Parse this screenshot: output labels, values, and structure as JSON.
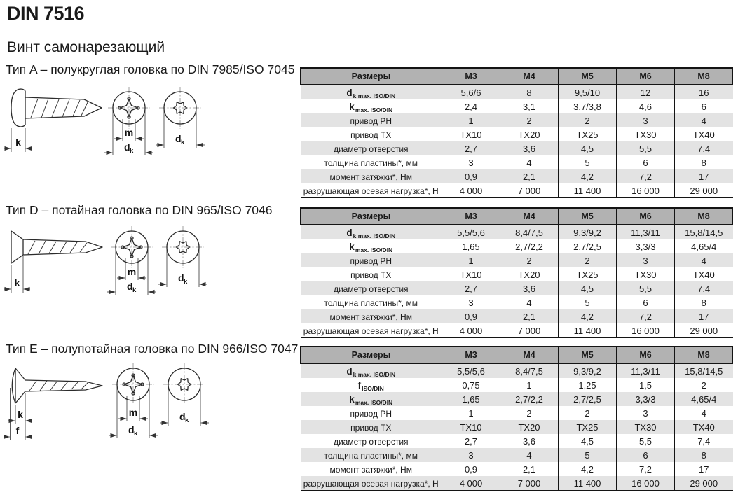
{
  "page": {
    "title": "DIN 7516",
    "subtitle": "Винт самонарезающий"
  },
  "colors": {
    "header_bg": "#b2b2b2",
    "row_alt_bg": "#e3e3e3",
    "border": "#141414",
    "text": "#1a1a1a"
  },
  "drawing_labels": {
    "k": "k",
    "m": "m",
    "f": "f",
    "d": "d",
    "d_sub": "k"
  },
  "sections": [
    {
      "id": "A",
      "title": "Тип A – полукруглая головка по DIN 7985/ISO 7045",
      "table": {
        "header": [
          "Размеры",
          "M3",
          "M4",
          "M5",
          "M6",
          "M8"
        ],
        "rows": [
          {
            "main": "d",
            "sub": "k max. ISO/DIN",
            "values": [
              "5,6/6",
              "8",
              "9,5/10",
              "12",
              "16"
            ]
          },
          {
            "main": "k",
            "sub": "max. ISO/DIN",
            "values": [
              "2,4",
              "3,1",
              "3,7/3,8",
              "4,6",
              "6"
            ]
          },
          {
            "main": "привод PH",
            "sub": "",
            "values": [
              "1",
              "2",
              "2",
              "3",
              "4"
            ]
          },
          {
            "main": "привод TX",
            "sub": "",
            "values": [
              "TX10",
              "TX20",
              "TX25",
              "TX30",
              "TX40"
            ]
          },
          {
            "main": "диаметр отверстия",
            "sub": "",
            "values": [
              "2,7",
              "3,6",
              "4,5",
              "5,5",
              "7,4"
            ]
          },
          {
            "main": "толщина пластины*, мм",
            "sub": "",
            "values": [
              "3",
              "4",
              "5",
              "6",
              "8"
            ]
          },
          {
            "main": "момент затяжки*, Нм",
            "sub": "",
            "values": [
              "0,9",
              "2,1",
              "4,2",
              "7,2",
              "17"
            ]
          },
          {
            "main": "разрушающая осевая нагрузка*, Н",
            "sub": "",
            "values": [
              "4 000",
              "7 000",
              "11 400",
              "16 000",
              "29 000"
            ]
          }
        ]
      }
    },
    {
      "id": "D",
      "title": "Тип D – потайная головка по DIN 965/ISO 7046",
      "table": {
        "header": [
          "Размеры",
          "M3",
          "M4",
          "M5",
          "M6",
          "M8"
        ],
        "rows": [
          {
            "main": "d",
            "sub": "k max. ISO/DIN",
            "values": [
              "5,5/5,6",
              "8,4/7,5",
              "9,3/9,2",
              "11,3/11",
              "15,8/14,5"
            ]
          },
          {
            "main": "k",
            "sub": "max. ISO/DIN",
            "values": [
              "1,65",
              "2,7/2,2",
              "2,7/2,5",
              "3,3/3",
              "4,65/4"
            ]
          },
          {
            "main": "привод PH",
            "sub": "",
            "values": [
              "1",
              "2",
              "2",
              "3",
              "4"
            ]
          },
          {
            "main": "привод TX",
            "sub": "",
            "values": [
              "TX10",
              "TX20",
              "TX25",
              "TX30",
              "TX40"
            ]
          },
          {
            "main": "диаметр отверстия",
            "sub": "",
            "values": [
              "2,7",
              "3,6",
              "4,5",
              "5,5",
              "7,4"
            ]
          },
          {
            "main": "толщина пластины*, мм",
            "sub": "",
            "values": [
              "3",
              "4",
              "5",
              "6",
              "8"
            ]
          },
          {
            "main": "момент затяжки*, Нм",
            "sub": "",
            "values": [
              "0,9",
              "2,1",
              "4,2",
              "7,2",
              "17"
            ]
          },
          {
            "main": "разрушающая осевая нагрузка*, Н",
            "sub": "",
            "values": [
              "4 000",
              "7 000",
              "11 400",
              "16 000",
              "29 000"
            ]
          }
        ]
      }
    },
    {
      "id": "E",
      "title": "Тип E – полупотайная головка по DIN 966/ISO 7047",
      "table": {
        "header": [
          "Размеры",
          "M3",
          "M4",
          "M5",
          "M6",
          "M8"
        ],
        "rows": [
          {
            "main": "d",
            "sub": "k max. ISO/DIN",
            "values": [
              "5,5/5,6",
              "8,4/7,5",
              "9,3/9,2",
              "11,3/11",
              "15,8/14,5"
            ]
          },
          {
            "main": "f",
            "sub": "ISO/DIN",
            "values": [
              "0,75",
              "1",
              "1,25",
              "1,5",
              "2"
            ]
          },
          {
            "main": "k",
            "sub": "max. ISO/DIN",
            "values": [
              "1,65",
              "2,7/2,2",
              "2,7/2,5",
              "3,3/3",
              "4,65/4"
            ]
          },
          {
            "main": "привод PH",
            "sub": "",
            "values": [
              "1",
              "2",
              "2",
              "3",
              "4"
            ]
          },
          {
            "main": "привод TX",
            "sub": "",
            "values": [
              "TX10",
              "TX20",
              "TX25",
              "TX30",
              "TX40"
            ]
          },
          {
            "main": "диаметр отверстия",
            "sub": "",
            "values": [
              "2,7",
              "3,6",
              "4,5",
              "5,5",
              "7,4"
            ]
          },
          {
            "main": "толщина пластины*, мм",
            "sub": "",
            "values": [
              "3",
              "4",
              "5",
              "6",
              "8"
            ]
          },
          {
            "main": "момент затяжки*, Нм",
            "sub": "",
            "values": [
              "0,9",
              "2,1",
              "4,2",
              "7,2",
              "17"
            ]
          },
          {
            "main": "разрушающая осевая нагрузка*, Н",
            "sub": "",
            "values": [
              "4 000",
              "7 000",
              "11 400",
              "16 000",
              "29 000"
            ]
          }
        ]
      }
    }
  ]
}
